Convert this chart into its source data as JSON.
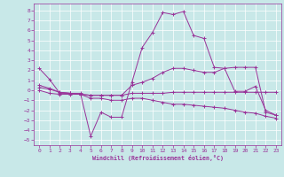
{
  "xlabel": "Windchill (Refroidissement éolien,°C)",
  "bg_color": "#c8e8e8",
  "line_color": "#993399",
  "xlim": [
    -0.5,
    23.5
  ],
  "ylim": [
    -5.5,
    8.7
  ],
  "xticks": [
    0,
    1,
    2,
    3,
    4,
    5,
    6,
    7,
    8,
    9,
    10,
    11,
    12,
    13,
    14,
    15,
    16,
    17,
    18,
    19,
    20,
    21,
    22,
    23
  ],
  "yticks": [
    -5,
    -4,
    -3,
    -2,
    -1,
    0,
    1,
    2,
    3,
    4,
    5,
    6,
    7,
    8
  ],
  "lines": [
    {
      "x": [
        0,
        1,
        2,
        3,
        4,
        5,
        6,
        7,
        8,
        9,
        10,
        11,
        12,
        13,
        14,
        15,
        16,
        17,
        18,
        19,
        20,
        21,
        22,
        23
      ],
      "y": [
        2.2,
        1.1,
        -0.3,
        -0.3,
        -0.3,
        -4.6,
        -2.2,
        -2.7,
        -2.7,
        0.8,
        4.3,
        5.8,
        7.8,
        7.6,
        7.9,
        5.5,
        5.2,
        2.3,
        2.2,
        -0.1,
        -0.1,
        0.4,
        -2.0,
        -2.5
      ]
    },
    {
      "x": [
        0,
        1,
        2,
        3,
        4,
        5,
        6,
        7,
        8,
        9,
        10,
        11,
        12,
        13,
        14,
        15,
        16,
        17,
        18,
        19,
        20,
        21,
        22,
        23
      ],
      "y": [
        0.0,
        -0.3,
        -0.4,
        -0.4,
        -0.4,
        -0.5,
        -0.5,
        -0.5,
        -0.5,
        -0.3,
        -0.3,
        -0.3,
        -0.3,
        -0.2,
        -0.2,
        -0.2,
        -0.2,
        -0.2,
        -0.2,
        -0.2,
        -0.2,
        -0.2,
        -0.2,
        -0.2
      ]
    },
    {
      "x": [
        0,
        1,
        2,
        3,
        4,
        5,
        6,
        7,
        8,
        9,
        10,
        11,
        12,
        13,
        14,
        15,
        16,
        17,
        18,
        19,
        20,
        21,
        22,
        23
      ],
      "y": [
        0.3,
        0.1,
        -0.2,
        -0.3,
        -0.4,
        -0.5,
        -0.5,
        -0.5,
        -0.5,
        0.5,
        0.8,
        1.2,
        1.8,
        2.2,
        2.2,
        2.0,
        1.8,
        1.8,
        2.2,
        2.3,
        2.3,
        2.3,
        -2.2,
        -2.5
      ]
    },
    {
      "x": [
        0,
        1,
        2,
        3,
        4,
        5,
        6,
        7,
        8,
        9,
        10,
        11,
        12,
        13,
        14,
        15,
        16,
        17,
        18,
        19,
        20,
        21,
        22,
        23
      ],
      "y": [
        0.5,
        0.2,
        -0.2,
        -0.3,
        -0.4,
        -0.8,
        -0.8,
        -1.0,
        -1.0,
        -0.8,
        -0.8,
        -1.0,
        -1.2,
        -1.4,
        -1.4,
        -1.5,
        -1.6,
        -1.7,
        -1.8,
        -2.0,
        -2.2,
        -2.3,
        -2.6,
        -2.8
      ]
    }
  ]
}
